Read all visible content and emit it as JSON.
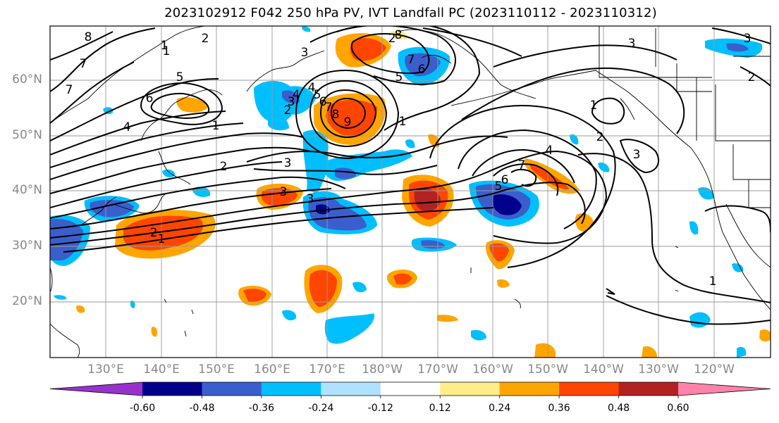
{
  "title": "2023102912 F042 250 hPa PV, IVT Landfall PC (2023110112 - 2023110312)",
  "lat_labels": [
    "60°N",
    "50°N",
    "40°N",
    "30°N",
    "20°N"
  ],
  "lon_labels": [
    "130°E",
    "140°E",
    "150°E",
    "160°E",
    "170°E",
    "180°W",
    "170°W",
    "160°W",
    "150°W",
    "140°W",
    "130°W",
    "120°W"
  ],
  "colorbar": {
    "tick_labels": [
      "-0.60",
      "-0.48",
      "-0.36",
      "-0.24",
      "-0.12",
      "0.12",
      "0.24",
      "0.36",
      "0.48",
      "0.60"
    ],
    "levels": [
      -0.6,
      -0.48,
      -0.36,
      -0.24,
      -0.12,
      0.12,
      0.24,
      0.36,
      0.48,
      0.6
    ],
    "colors": [
      "#9932cc",
      "#00008b",
      "#3a5fcd",
      "#00bfff",
      "#b0e2ff",
      "#ffffff",
      "#ffec8b",
      "#ffa500",
      "#ff4500",
      "#b22222",
      "#ff82ab"
    ]
  },
  "contour_labels": [
    "8",
    "7",
    "7",
    "6",
    "5",
    "4",
    "3",
    "3",
    "2",
    "2",
    "1",
    "1",
    "2",
    "3",
    "4",
    "5",
    "6",
    "7",
    "8",
    "9",
    "8",
    "7",
    "6",
    "5",
    "4",
    "3",
    "3",
    "2",
    "1",
    "1",
    "2",
    "3",
    "3",
    "4",
    "5",
    "6",
    "7",
    "2",
    "1",
    "1",
    "1",
    "2",
    "3"
  ]
}
